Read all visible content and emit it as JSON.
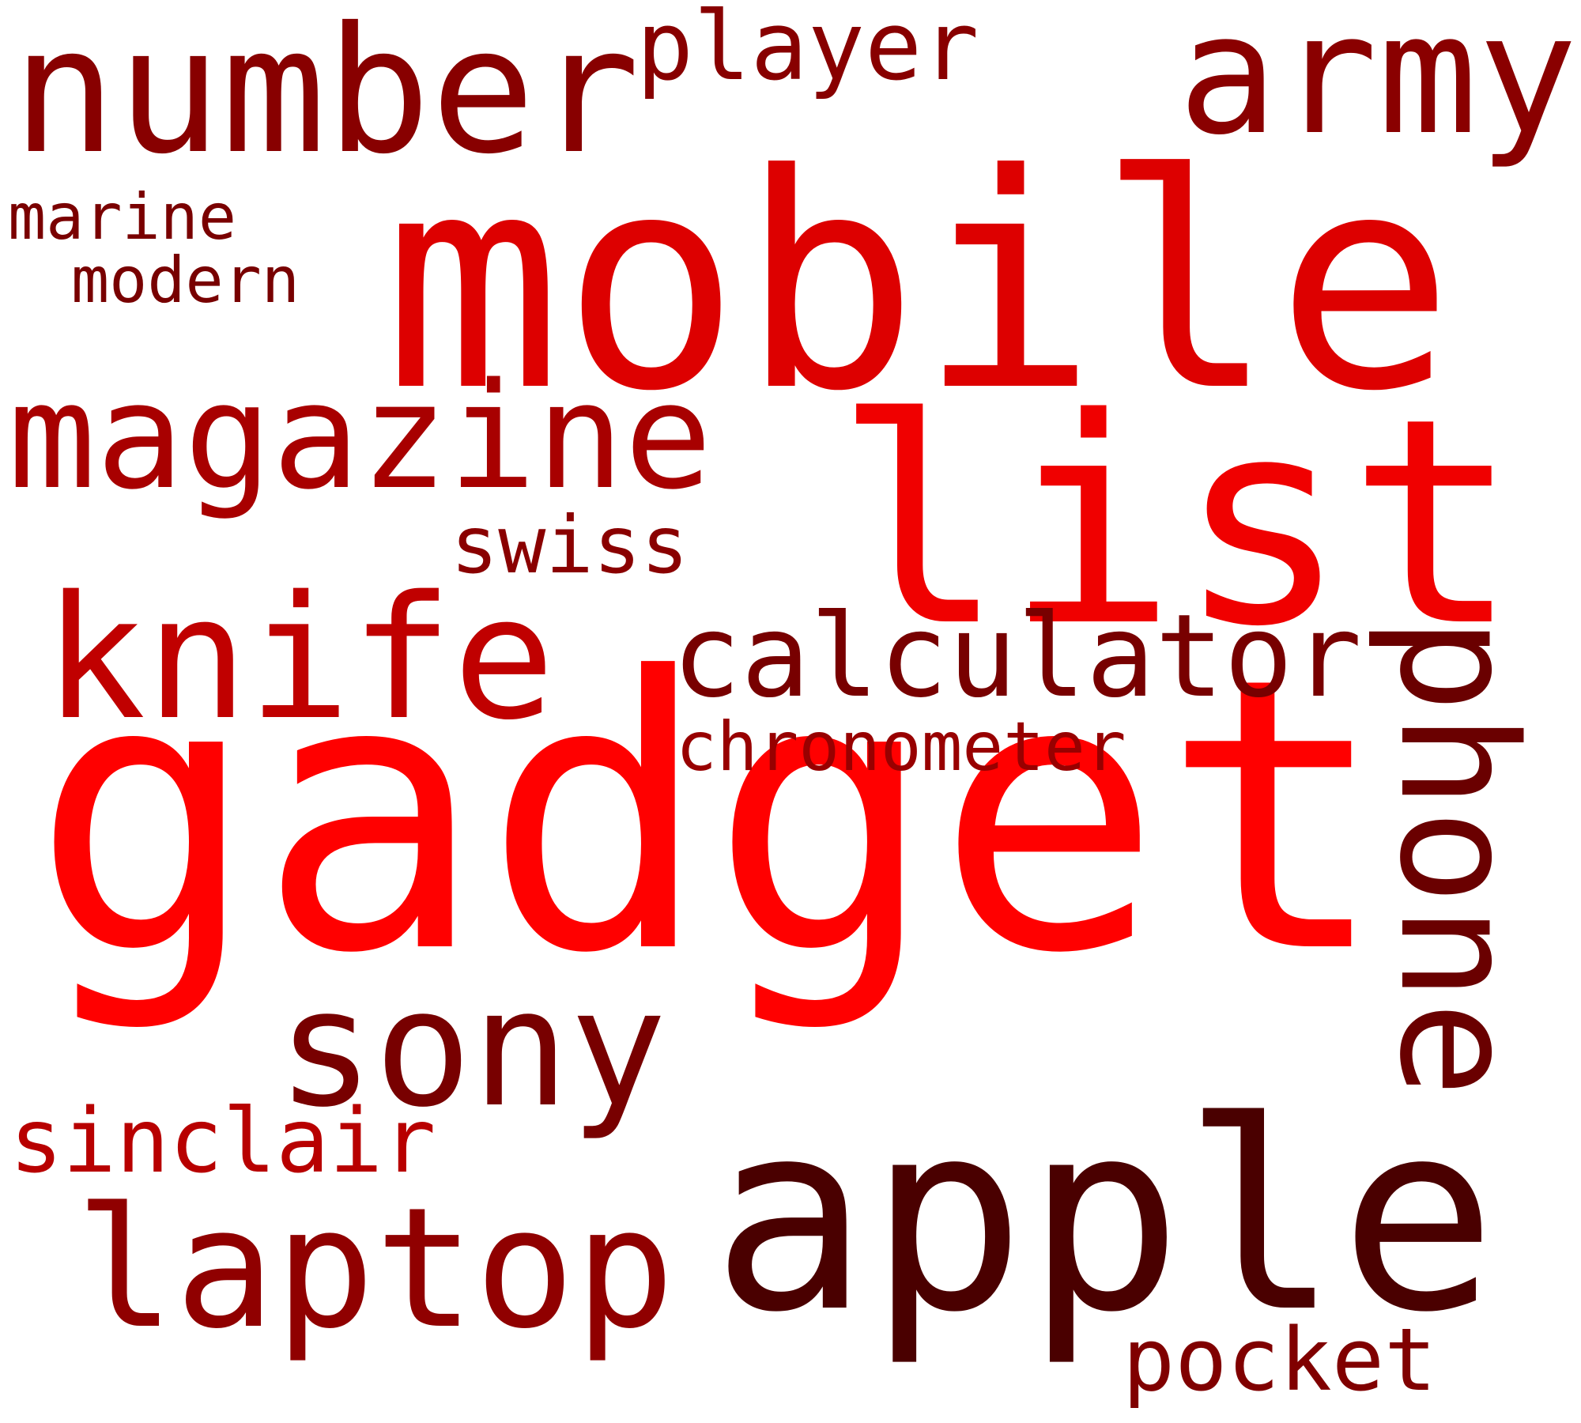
{
  "words": [
    {
      "key": "gadget",
      "text": "gadget",
      "color": "#FF0000"
    },
    {
      "key": "mobile",
      "text": "mobile",
      "color": "#DD0000"
    },
    {
      "key": "list",
      "text": "list",
      "color": "#F00000"
    },
    {
      "key": "apple",
      "text": "apple",
      "color": "#4A0000"
    },
    {
      "key": "phone",
      "text": "phone",
      "color": "#6A0000"
    },
    {
      "key": "number",
      "text": "number",
      "color": "#880000"
    },
    {
      "key": "army",
      "text": "army",
      "color": "#8A0000"
    },
    {
      "key": "magazine",
      "text": "magazine",
      "color": "#A80000"
    },
    {
      "key": "knife",
      "text": "knife",
      "color": "#C00000"
    },
    {
      "key": "sony",
      "text": "sony",
      "color": "#780000"
    },
    {
      "key": "laptop",
      "text": "laptop",
      "color": "#900000"
    },
    {
      "key": "calculator",
      "text": "calculator",
      "color": "#780000"
    },
    {
      "key": "player",
      "text": "player",
      "color": "#880000"
    },
    {
      "key": "sinclair",
      "text": "sinclair",
      "color": "#B80000"
    },
    {
      "key": "pocket",
      "text": "pocket",
      "color": "#800000"
    },
    {
      "key": "chronometer",
      "text": "chronometer",
      "color": "#980000"
    },
    {
      "key": "swiss",
      "text": "swiss",
      "color": "#8A0000"
    },
    {
      "key": "marine",
      "text": "marine",
      "color": "#7A0000"
    },
    {
      "key": "modern",
      "text": "modern",
      "color": "#780000"
    }
  ]
}
